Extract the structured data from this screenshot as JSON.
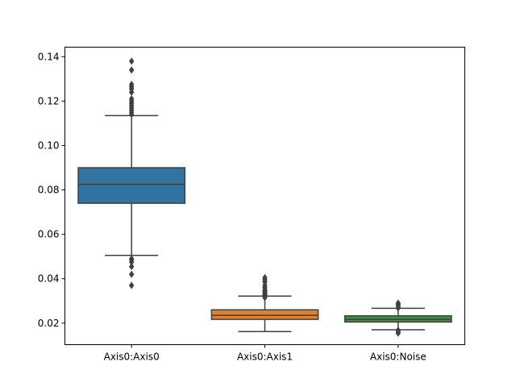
{
  "chart_data": {
    "type": "box",
    "title": "",
    "xlabel": "",
    "ylabel": "",
    "ylim": [
      0.0103,
      0.1443
    ],
    "yticks": [
      0.02,
      0.04,
      0.06,
      0.08,
      0.1,
      0.12,
      0.14
    ],
    "ytick_labels": [
      "0.02",
      "0.04",
      "0.06",
      "0.08",
      "0.10",
      "0.12",
      "0.14"
    ],
    "categories": [
      "Axis0:Axis0",
      "Axis0:Axis1",
      "Axis0:Noise"
    ],
    "colors": [
      "#3274a1",
      "#e1812c",
      "#3a923a"
    ],
    "grid": false,
    "boxes": [
      {
        "category": "Axis0:Axis0",
        "whisker_low": 0.0505,
        "q1": 0.074,
        "median": 0.0825,
        "q3": 0.09,
        "whisker_high": 0.1135,
        "outliers": [
          0.037,
          0.042,
          0.0455,
          0.0475,
          0.0485,
          0.049,
          0.114,
          0.115,
          0.116,
          0.117,
          0.118,
          0.119,
          0.12,
          0.121,
          0.124,
          0.1255,
          0.1265,
          0.1275,
          0.134,
          0.138
        ]
      },
      {
        "category": "Axis0:Axis1",
        "whisker_low": 0.0162,
        "q1": 0.0217,
        "median": 0.0235,
        "q3": 0.026,
        "whisker_high": 0.0322,
        "outliers": [
          0.0315,
          0.0325,
          0.033,
          0.0335,
          0.034,
          0.0345,
          0.035,
          0.036,
          0.037,
          0.0385,
          0.0395,
          0.0405
        ]
      },
      {
        "category": "Axis0:Noise",
        "whisker_low": 0.017,
        "q1": 0.0205,
        "median": 0.0217,
        "q3": 0.0233,
        "whisker_high": 0.0267,
        "outliers": [
          0.0155,
          0.0162,
          0.0168,
          0.0268,
          0.0276,
          0.0284,
          0.029
        ]
      }
    ]
  }
}
